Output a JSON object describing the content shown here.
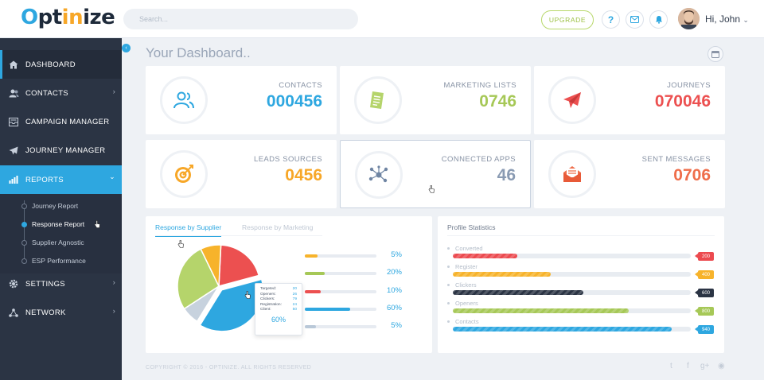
{
  "brand": {
    "part1": "O",
    "part2": "pt",
    "part3": "in",
    "part4": "ize"
  },
  "search": {
    "placeholder": "Search..."
  },
  "header": {
    "upgrade_label": "UPGRADE",
    "help_icon": "?",
    "user_greeting": "Hi, John",
    "chevron": "⌄"
  },
  "sidebar": {
    "items": [
      {
        "label": "DASHBOARD",
        "icon": "home-icon"
      },
      {
        "label": "CONTACTS",
        "icon": "users-icon"
      },
      {
        "label": "CAMPAIGN MANAGER",
        "icon": "inbox-icon"
      },
      {
        "label": "JOURNEY MANAGER",
        "icon": "paper-plane-icon"
      },
      {
        "label": "REPORTS",
        "icon": "bar-chart-icon"
      },
      {
        "label": "SETTINGS",
        "icon": "gear-icon"
      },
      {
        "label": "NETWORK",
        "icon": "network-icon"
      }
    ],
    "subitems": [
      "Journey Report",
      "Response Report",
      "Supplier Agnostic",
      "ESP Performance"
    ],
    "chev_right": "›",
    "chev_down": "⌄",
    "collapse": "‹"
  },
  "main": {
    "title": "Your Dashboard..",
    "stats": [
      {
        "label": "CONTACTS",
        "value": "000456",
        "color": "#2ea7e0"
      },
      {
        "label": "MARKETING LISTS",
        "value": "0746",
        "color": "#a6c857"
      },
      {
        "label": "JOURNEYS",
        "value": "070046",
        "color": "#ec5050"
      },
      {
        "label": "LEADS SOURCES",
        "value": "0456",
        "color": "#f7a728"
      },
      {
        "label": "CONNECTED APPS",
        "value": "46",
        "color": "#8a9bb3"
      },
      {
        "label": "SENT MESSAGES",
        "value": "0706",
        "color": "#ef6e4b"
      }
    ]
  },
  "response_panel": {
    "tabs": [
      "Response by Supplier",
      "Response by Marketing"
    ],
    "bars": [
      {
        "pct": "5%",
        "value": 0.18,
        "color": "#f7b32b"
      },
      {
        "pct": "20%",
        "value": 0.28,
        "color": "#a6c857"
      },
      {
        "pct": "10%",
        "value": 0.22,
        "color": "#ec5050"
      },
      {
        "pct": "60%",
        "value": 0.63,
        "color": "#2ea7e0"
      },
      {
        "pct": "5%",
        "value": 0.16,
        "color": "#b9c8d8"
      }
    ],
    "tooltip": {
      "rows": [
        {
          "label": "Targeted:",
          "value": "20"
        },
        {
          "label": "Openers:",
          "value": "26"
        },
        {
          "label": "Clickers:",
          "value": "79"
        },
        {
          "label": "Registration:",
          "value": "24"
        },
        {
          "label": "Client:",
          "value": "50"
        }
      ],
      "total": "60%"
    }
  },
  "chart_data": {
    "type": "pie",
    "title": "Response by Supplier",
    "slices": [
      {
        "name": "Red",
        "value": 20,
        "color": "#ec5050"
      },
      {
        "name": "Blue",
        "value": 38,
        "color": "#2ea7e0"
      },
      {
        "name": "Gray",
        "value": 7,
        "color": "#c7d2de"
      },
      {
        "name": "Green",
        "value": 27,
        "color": "#b5d46b"
      },
      {
        "name": "Orange",
        "value": 8,
        "color": "#f7b32b"
      }
    ]
  },
  "profile_panel": {
    "title": "Profile Statistics",
    "rows": [
      {
        "label": "Converted",
        "badge": "200",
        "fill": 0.27,
        "color": "#ec4a4f"
      },
      {
        "label": "Register",
        "badge": "400",
        "fill": 0.41,
        "color": "#f7b32b"
      },
      {
        "label": "Clickers",
        "badge": "600",
        "fill": 0.55,
        "color": "#2b3444"
      },
      {
        "label": "Openers",
        "badge": "800",
        "fill": 0.74,
        "color": "#a6c857"
      },
      {
        "label": "Contacts",
        "badge": "940",
        "fill": 0.92,
        "color": "#2ea7e0"
      }
    ]
  },
  "footer": {
    "copyright": "COPYRIGHT © 2016 - OPTINIZE. ALL RIGHTS RESERVED",
    "twitter": "t",
    "facebook": "f",
    "gplus": "g+",
    "rss": "◉"
  }
}
